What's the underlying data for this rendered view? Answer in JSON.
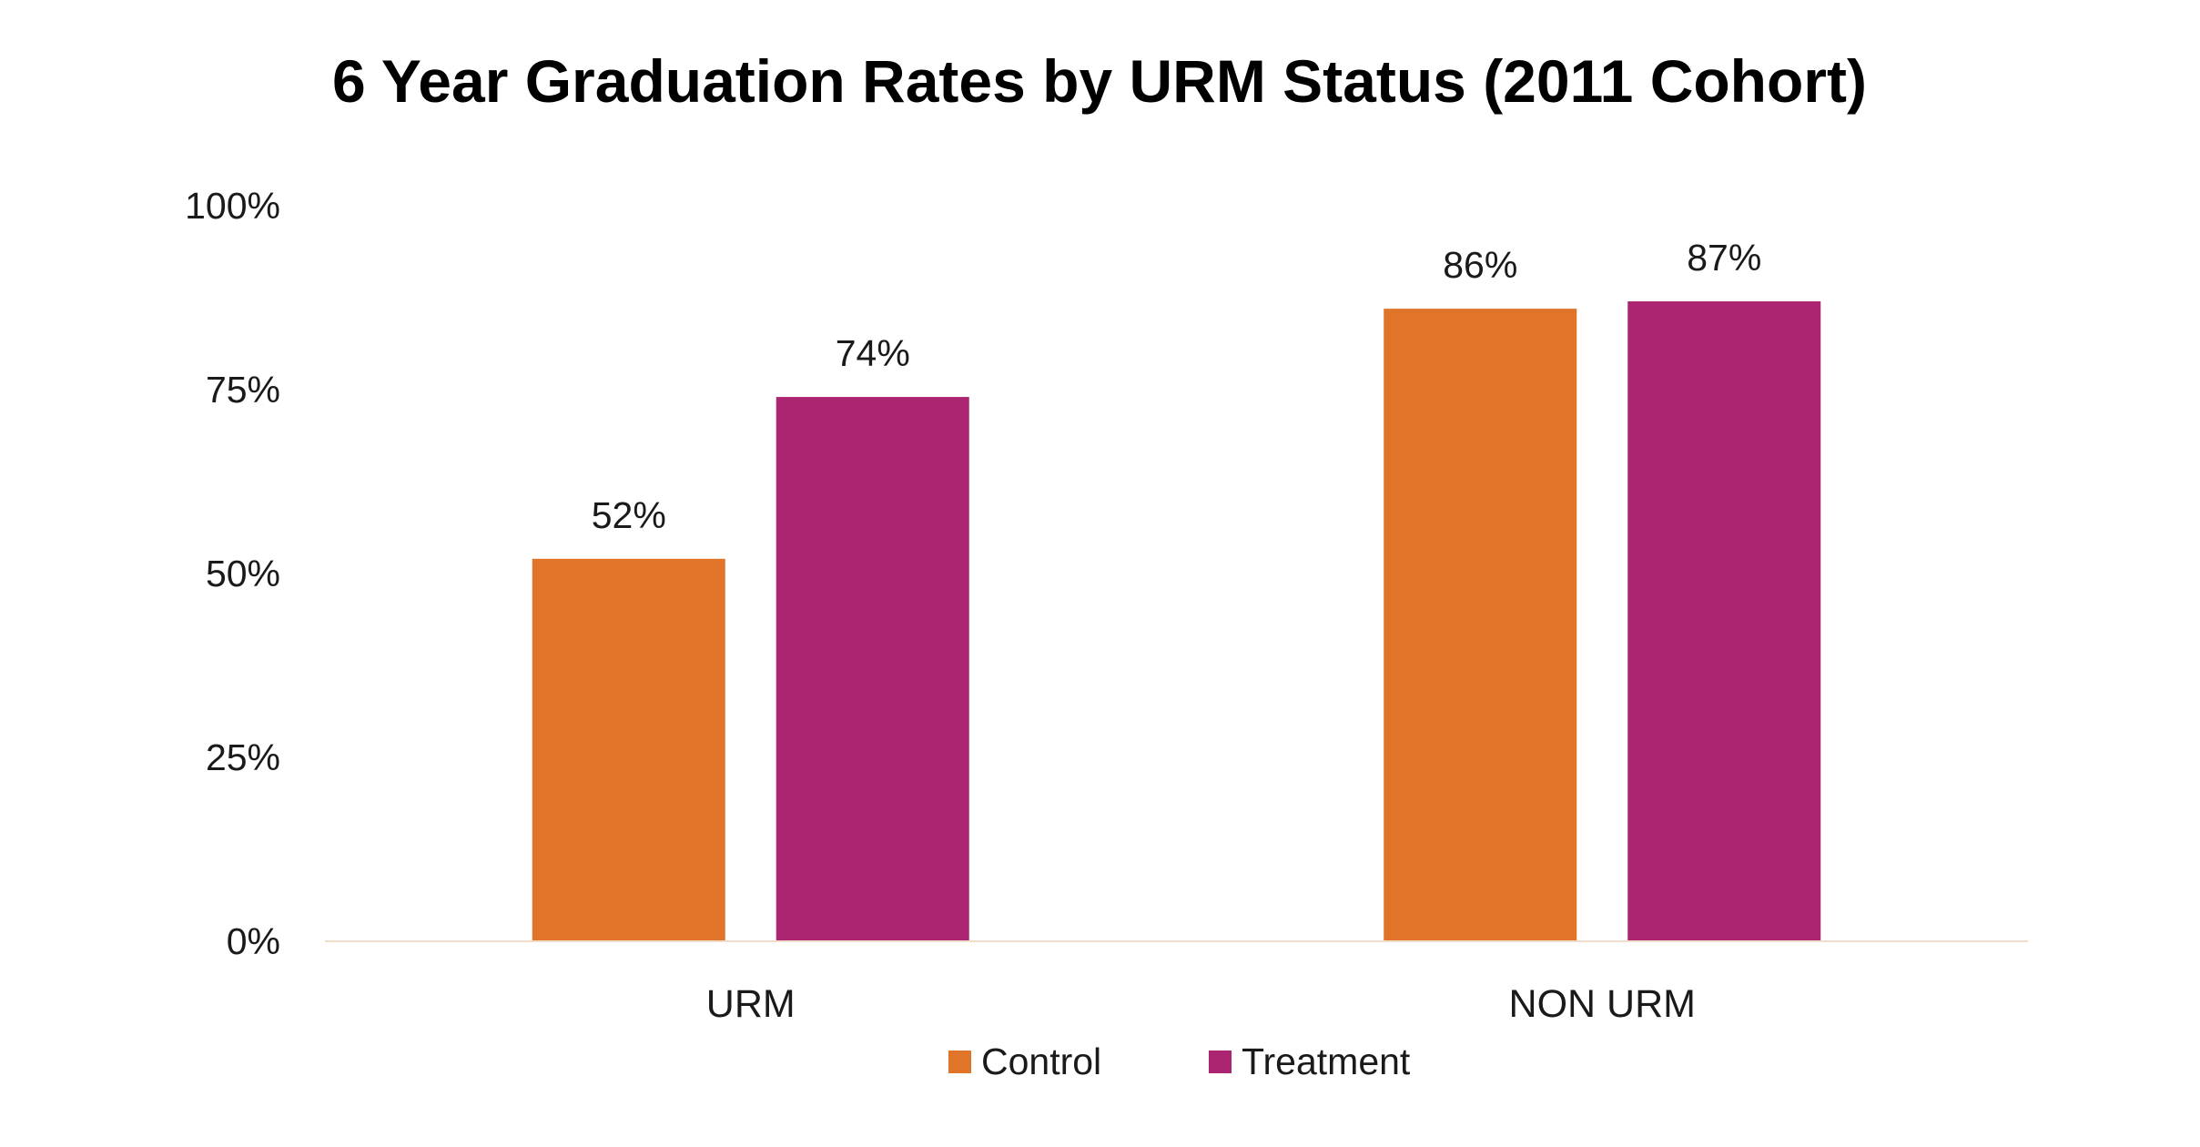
{
  "chart_data": {
    "type": "bar",
    "title": "6 Year Graduation Rates by URM Status (2011 Cohort)",
    "xlabel": "",
    "ylabel": "",
    "categories": [
      "URM",
      "NON URM"
    ],
    "series": [
      {
        "name": "Control",
        "values": [
          52,
          86
        ],
        "labels": [
          "52%",
          "86%"
        ],
        "color": "#E07428"
      },
      {
        "name": "Treatment",
        "values": [
          74,
          87
        ],
        "labels": [
          "74%",
          "87%"
        ],
        "color": "#AC2570"
      }
    ],
    "ylim": [
      0,
      100
    ],
    "y_ticks": [
      0,
      25,
      50,
      75,
      100
    ],
    "y_tick_labels": [
      "0%",
      "25%",
      "50%",
      "75%",
      "100%"
    ],
    "grid": false,
    "legend_position": "bottom",
    "axis_color": "#F2DDCB"
  }
}
